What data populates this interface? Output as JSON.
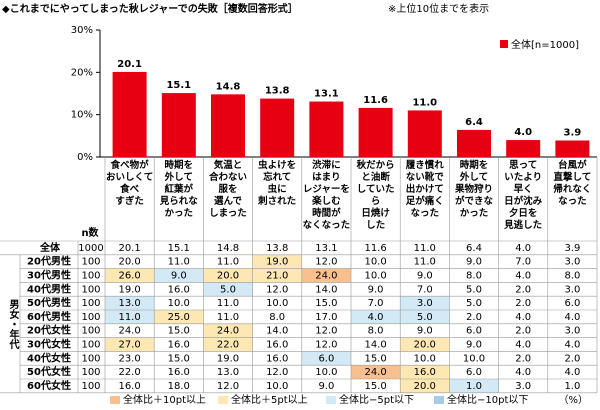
{
  "chart_data": {
    "type": "bar",
    "title": "◆これまでにやってしまった秋レジャーでの失敗［複数回答形式］",
    "note": "※上位10位までを表示",
    "categories": [
      "食べ物が\nおいしくて\n食べ\nすぎた",
      "時期を\n外して\n紅葉が\n見られな\nかった",
      "気温と\n合わない\n服を\n選んで\nしまった",
      "虫よけを\n忘れて\n虫に\n刺された",
      "渋滞に\nはまり\nレジャーを\n楽しむ\n時間が\nなくなった",
      "秋だから\nと油断\nしていた\nら\n日焼け\nした",
      "履き慣れ\nない靴で\n出かけて\n足が痛く\nなった",
      "時期を\n外して\n果物狩り\nができな\nかった",
      "思って\nいたより\n早く\n日が沈み\n夕日を\n見逃した",
      "台風が\n直撃して\n帰れなく\nなった"
    ],
    "series": [
      {
        "name": "全体[n=1000]",
        "color": "#e60012",
        "values": [
          20.1,
          15.1,
          14.8,
          13.8,
          13.1,
          11.6,
          11.0,
          6.4,
          4.0,
          3.9
        ],
        "value_labels": [
          "20.1",
          "15.1",
          "14.8",
          "13.8",
          "13.1",
          "11.6",
          "11.0",
          "6.4",
          "4.0",
          "3.9"
        ]
      }
    ],
    "ylim": [
      0,
      30
    ],
    "yticks": [
      {
        "value": 0,
        "label": "0%"
      },
      {
        "value": 10,
        "label": "10%"
      },
      {
        "value": 20,
        "label": "20%"
      },
      {
        "value": 30,
        "label": "30%"
      }
    ],
    "legend": "top-right"
  },
  "table": {
    "n_header": "n数",
    "group_label": "男女・年代",
    "rows": [
      {
        "label": "全体",
        "n": "1000",
        "values": [
          "20.1",
          "15.1",
          "14.8",
          "13.8",
          "13.1",
          "11.6",
          "11.0",
          "6.4",
          "4.0",
          "3.9"
        ],
        "highlight": [
          null,
          null,
          null,
          null,
          null,
          null,
          null,
          null,
          null,
          null
        ]
      },
      {
        "label": "20代男性",
        "n": "100",
        "values": [
          "20.0",
          "11.0",
          "11.0",
          "19.0",
          "12.0",
          "10.0",
          "11.0",
          "9.0",
          "7.0",
          "3.0"
        ],
        "highlight": [
          null,
          null,
          null,
          1,
          null,
          null,
          null,
          null,
          null,
          null
        ]
      },
      {
        "label": "30代男性",
        "n": "100",
        "values": [
          "26.0",
          "9.0",
          "20.0",
          "21.0",
          "24.0",
          "10.0",
          "9.0",
          "8.0",
          "4.0",
          "8.0"
        ],
        "highlight": [
          1,
          2,
          1,
          1,
          0,
          null,
          null,
          null,
          null,
          null
        ]
      },
      {
        "label": "40代男性",
        "n": "100",
        "values": [
          "19.0",
          "16.0",
          "5.0",
          "12.0",
          "14.0",
          "9.0",
          "7.0",
          "5.0",
          "2.0",
          "3.0"
        ],
        "highlight": [
          null,
          null,
          2,
          null,
          null,
          null,
          null,
          null,
          null,
          null
        ]
      },
      {
        "label": "50代男性",
        "n": "100",
        "values": [
          "13.0",
          "10.0",
          "11.0",
          "10.0",
          "15.0",
          "7.0",
          "3.0",
          "5.0",
          "2.0",
          "6.0"
        ],
        "highlight": [
          2,
          null,
          null,
          null,
          null,
          null,
          2,
          null,
          null,
          null
        ]
      },
      {
        "label": "60代男性",
        "n": "100",
        "values": [
          "11.0",
          "25.0",
          "11.0",
          "8.0",
          "17.0",
          "4.0",
          "5.0",
          "2.0",
          "4.0",
          "4.0"
        ],
        "highlight": [
          2,
          1,
          null,
          null,
          null,
          2,
          2,
          null,
          null,
          null
        ]
      },
      {
        "label": "20代女性",
        "n": "100",
        "values": [
          "24.0",
          "15.0",
          "24.0",
          "14.0",
          "12.0",
          "8.0",
          "9.0",
          "6.0",
          "2.0",
          "3.0"
        ],
        "highlight": [
          null,
          null,
          1,
          null,
          null,
          null,
          null,
          null,
          null,
          null
        ]
      },
      {
        "label": "30代女性",
        "n": "100",
        "values": [
          "27.0",
          "16.0",
          "22.0",
          "16.0",
          "12.0",
          "14.0",
          "20.0",
          "9.0",
          "4.0",
          "4.0"
        ],
        "highlight": [
          1,
          null,
          1,
          null,
          null,
          null,
          1,
          null,
          null,
          null
        ]
      },
      {
        "label": "40代女性",
        "n": "100",
        "values": [
          "23.0",
          "15.0",
          "19.0",
          "16.0",
          "6.0",
          "15.0",
          "10.0",
          "10.0",
          "2.0",
          "2.0"
        ],
        "highlight": [
          null,
          null,
          null,
          null,
          2,
          null,
          null,
          null,
          null,
          null
        ]
      },
      {
        "label": "50代女性",
        "n": "100",
        "values": [
          "22.0",
          "16.0",
          "13.0",
          "12.0",
          "10.0",
          "24.0",
          "16.0",
          "6.0",
          "4.0",
          "4.0"
        ],
        "highlight": [
          null,
          null,
          null,
          null,
          null,
          0,
          1,
          null,
          null,
          null
        ]
      },
      {
        "label": "60代女性",
        "n": "100",
        "values": [
          "16.0",
          "18.0",
          "12.0",
          "10.0",
          "9.0",
          "15.0",
          "20.0",
          "1.0",
          "3.0",
          "1.0"
        ],
        "highlight": [
          null,
          null,
          null,
          null,
          null,
          null,
          1,
          2,
          null,
          null
        ]
      }
    ],
    "legend": [
      {
        "label": "全体比＋10pt以上",
        "color": "#f7c08e"
      },
      {
        "label": "全体比＋5pt以上",
        "color": "#fde7b3"
      },
      {
        "label": "全体比−5pt以下",
        "color": "#d3e9f6"
      },
      {
        "label": "全体比−10pt以下",
        "color": "#a6cbe8"
      }
    ],
    "unit": "（%）"
  }
}
